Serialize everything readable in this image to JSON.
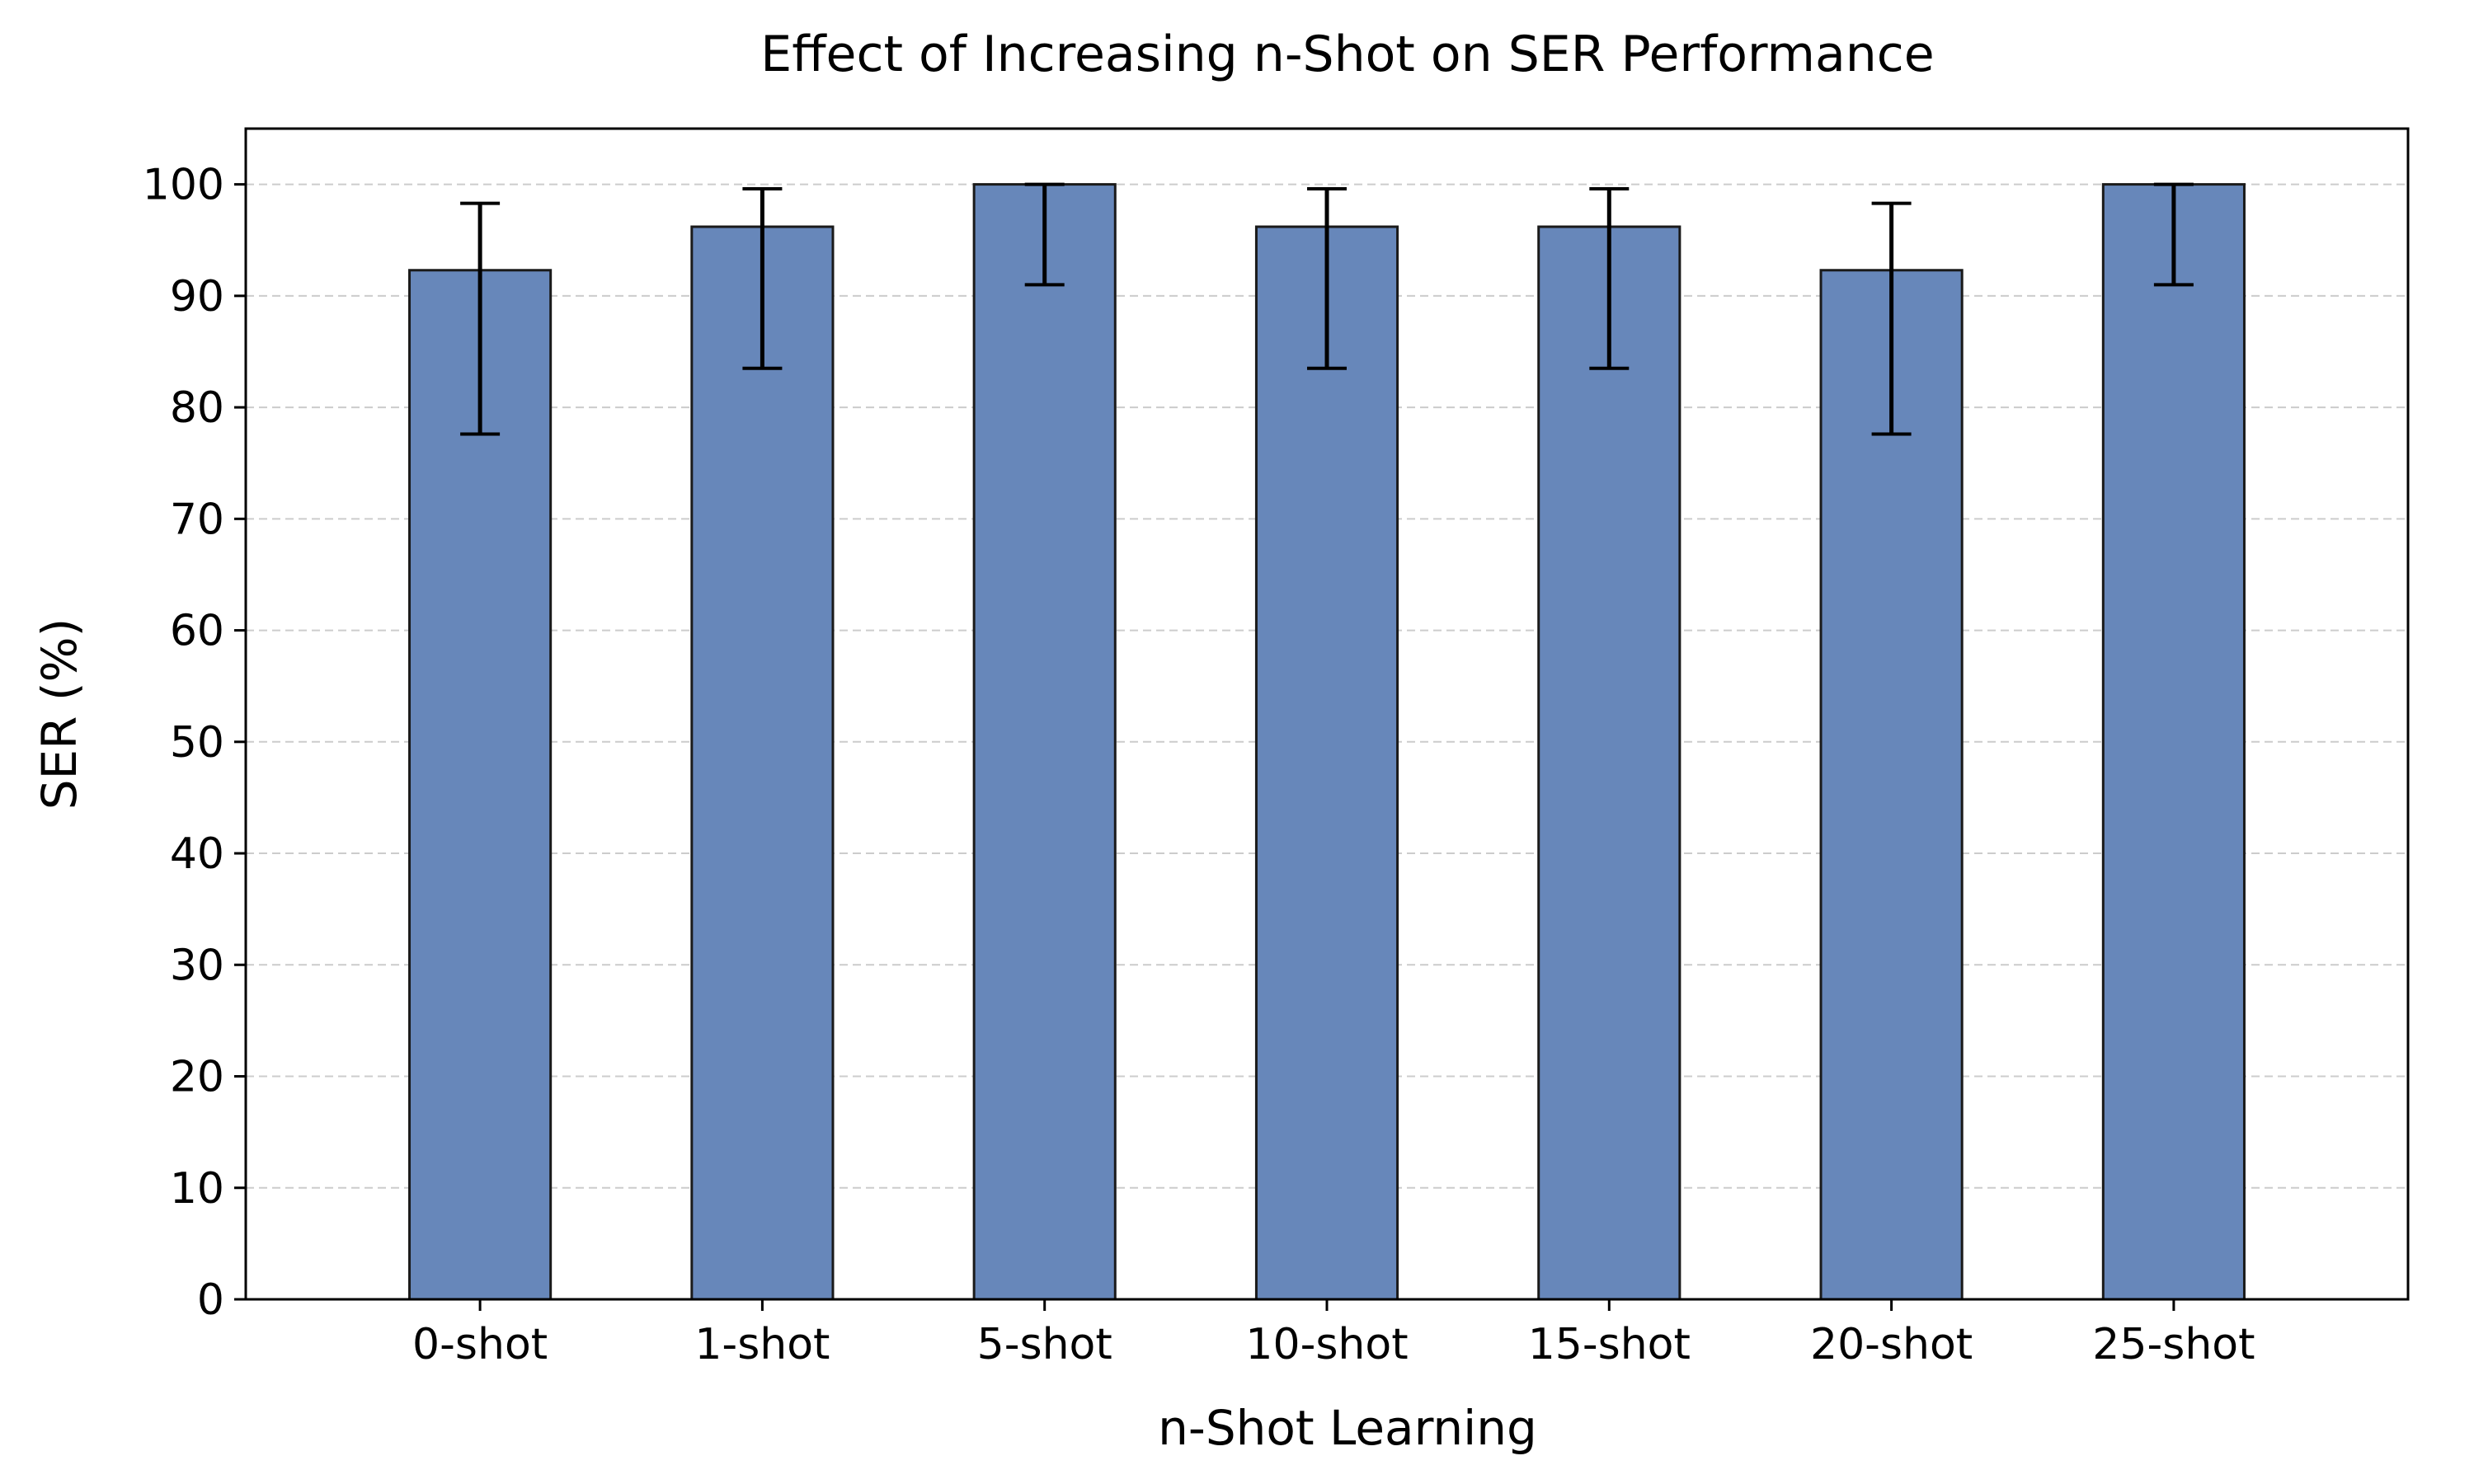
{
  "chart_data": {
    "type": "bar",
    "title": "Effect of Increasing n-Shot on SER Performance",
    "xlabel": "n-Shot Learning",
    "ylabel": "SER (%)",
    "categories": [
      "0-shot",
      "1-shot",
      "5-shot",
      "10-shot",
      "15-shot",
      "20-shot",
      "25-shot"
    ],
    "values": [
      92.3,
      96.2,
      100.0,
      96.2,
      96.2,
      92.3,
      100.0
    ],
    "error_low": [
      77.6,
      83.5,
      91.0,
      83.5,
      83.5,
      77.6,
      91.0
    ],
    "error_high": [
      98.3,
      99.6,
      100.0,
      99.6,
      99.6,
      98.3,
      100.0
    ],
    "ylim": [
      0,
      105
    ],
    "yticks": [
      0,
      10,
      20,
      30,
      40,
      50,
      60,
      70,
      80,
      90,
      100
    ],
    "grid": "y-dashed",
    "legend": "none",
    "bar_color": "#6787ba",
    "edge_color": "#1a1a1a",
    "error_color": "#000000",
    "grid_color": "#cccccc"
  }
}
